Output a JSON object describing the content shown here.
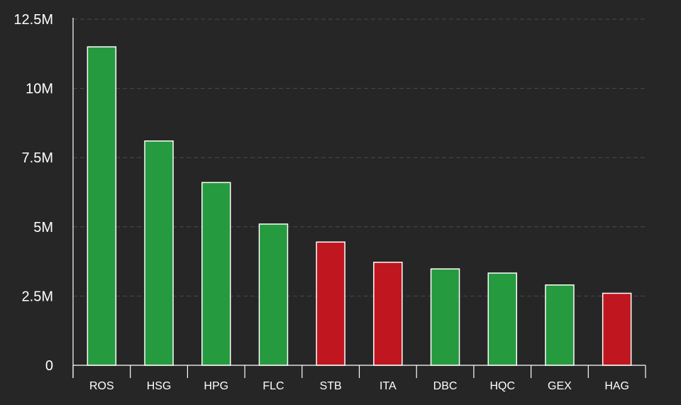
{
  "chart_data": {
    "type": "bar",
    "categories": [
      "ROS",
      "HSG",
      "HPG",
      "FLC",
      "STB",
      "ITA",
      "DBC",
      "HQC",
      "GEX",
      "HAG"
    ],
    "values": [
      11500000,
      8100000,
      6600000,
      5100000,
      4450000,
      3720000,
      3480000,
      3330000,
      2900000,
      2600000
    ],
    "bar_colors": [
      "#259a3e",
      "#259a3e",
      "#259a3e",
      "#259a3e",
      "#c0161f",
      "#c0161f",
      "#259a3e",
      "#259a3e",
      "#259a3e",
      "#c0161f"
    ],
    "ylim": [
      0,
      12500000
    ],
    "yticks": [
      {
        "value": 0,
        "label": "0"
      },
      {
        "value": 2500000,
        "label": "2.5M"
      },
      {
        "value": 5000000,
        "label": "5M"
      },
      {
        "value": 7500000,
        "label": "7.5M"
      },
      {
        "value": 10000000,
        "label": "10M"
      },
      {
        "value": 12500000,
        "label": "12.5M"
      }
    ],
    "grid": true,
    "background": "#262626",
    "title": "",
    "xlabel": "",
    "ylabel": ""
  }
}
